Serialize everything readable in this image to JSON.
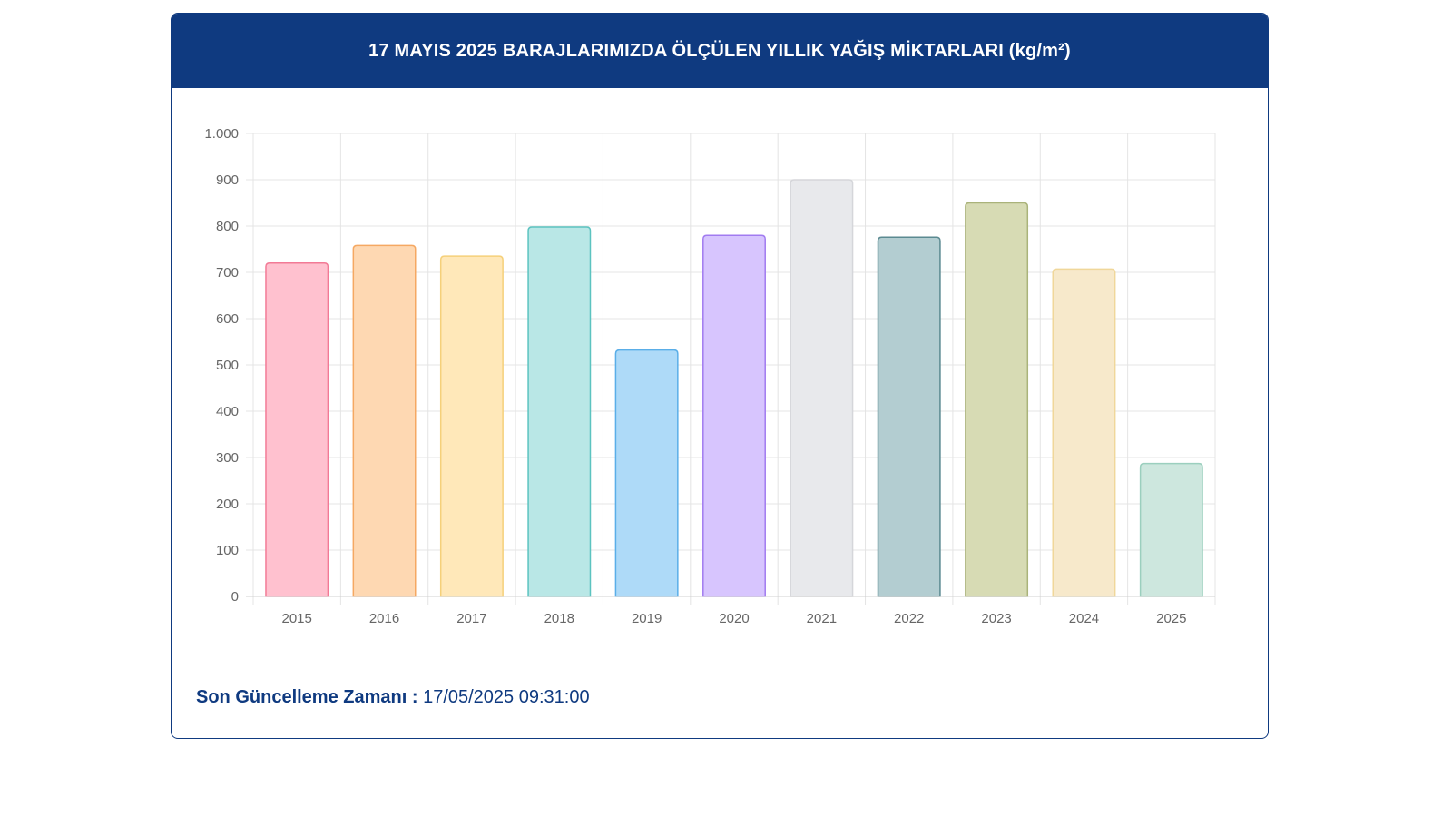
{
  "header": {
    "title": "17 MAYIS 2025 BARAJLARIMIZDA ÖLÇÜLEN YILLIK YAĞIŞ MİKTARLARI (kg/m²)"
  },
  "footer": {
    "update_label": "Son Güncelleme Zamanı :",
    "update_value": "17/05/2025 09:31:00"
  },
  "chart_data": {
    "type": "bar",
    "title": "17 MAYIS 2025 BARAJLARIMIZDA ÖLÇÜLEN YILLIK YAĞIŞ MİKTARLARI (kg/m²)",
    "xlabel": "",
    "ylabel": "",
    "categories": [
      "2015",
      "2016",
      "2017",
      "2018",
      "2019",
      "2020",
      "2021",
      "2022",
      "2023",
      "2024",
      "2025"
    ],
    "values": [
      720,
      758,
      735,
      798,
      532,
      780,
      900,
      776,
      850,
      707,
      287
    ],
    "ylim": [
      0,
      1000
    ],
    "yticks": [
      0,
      100,
      200,
      300,
      400,
      500,
      600,
      700,
      800,
      900,
      1000
    ],
    "ytick_labels": [
      "0",
      "100",
      "200",
      "300",
      "400",
      "500",
      "600",
      "700",
      "800",
      "900",
      "1.000"
    ],
    "grid": true,
    "legend": "none",
    "fill_colors": [
      "#ffc1cf",
      "#fed8b2",
      "#ffe8b9",
      "#b9e7e6",
      "#aedaf8",
      "#d7c5fe",
      "#e8e9ec",
      "#b3cdd1",
      "#d7dbb4",
      "#f7e9cb",
      "#cde7de"
    ],
    "border_colors": [
      "#f27a96",
      "#f5a862",
      "#f5d07a",
      "#5cc3c0",
      "#5aaee8",
      "#a17bf0",
      "#d5d6da",
      "#5b8a91",
      "#aab37a",
      "#f0d79a",
      "#9bcfbe"
    ]
  }
}
